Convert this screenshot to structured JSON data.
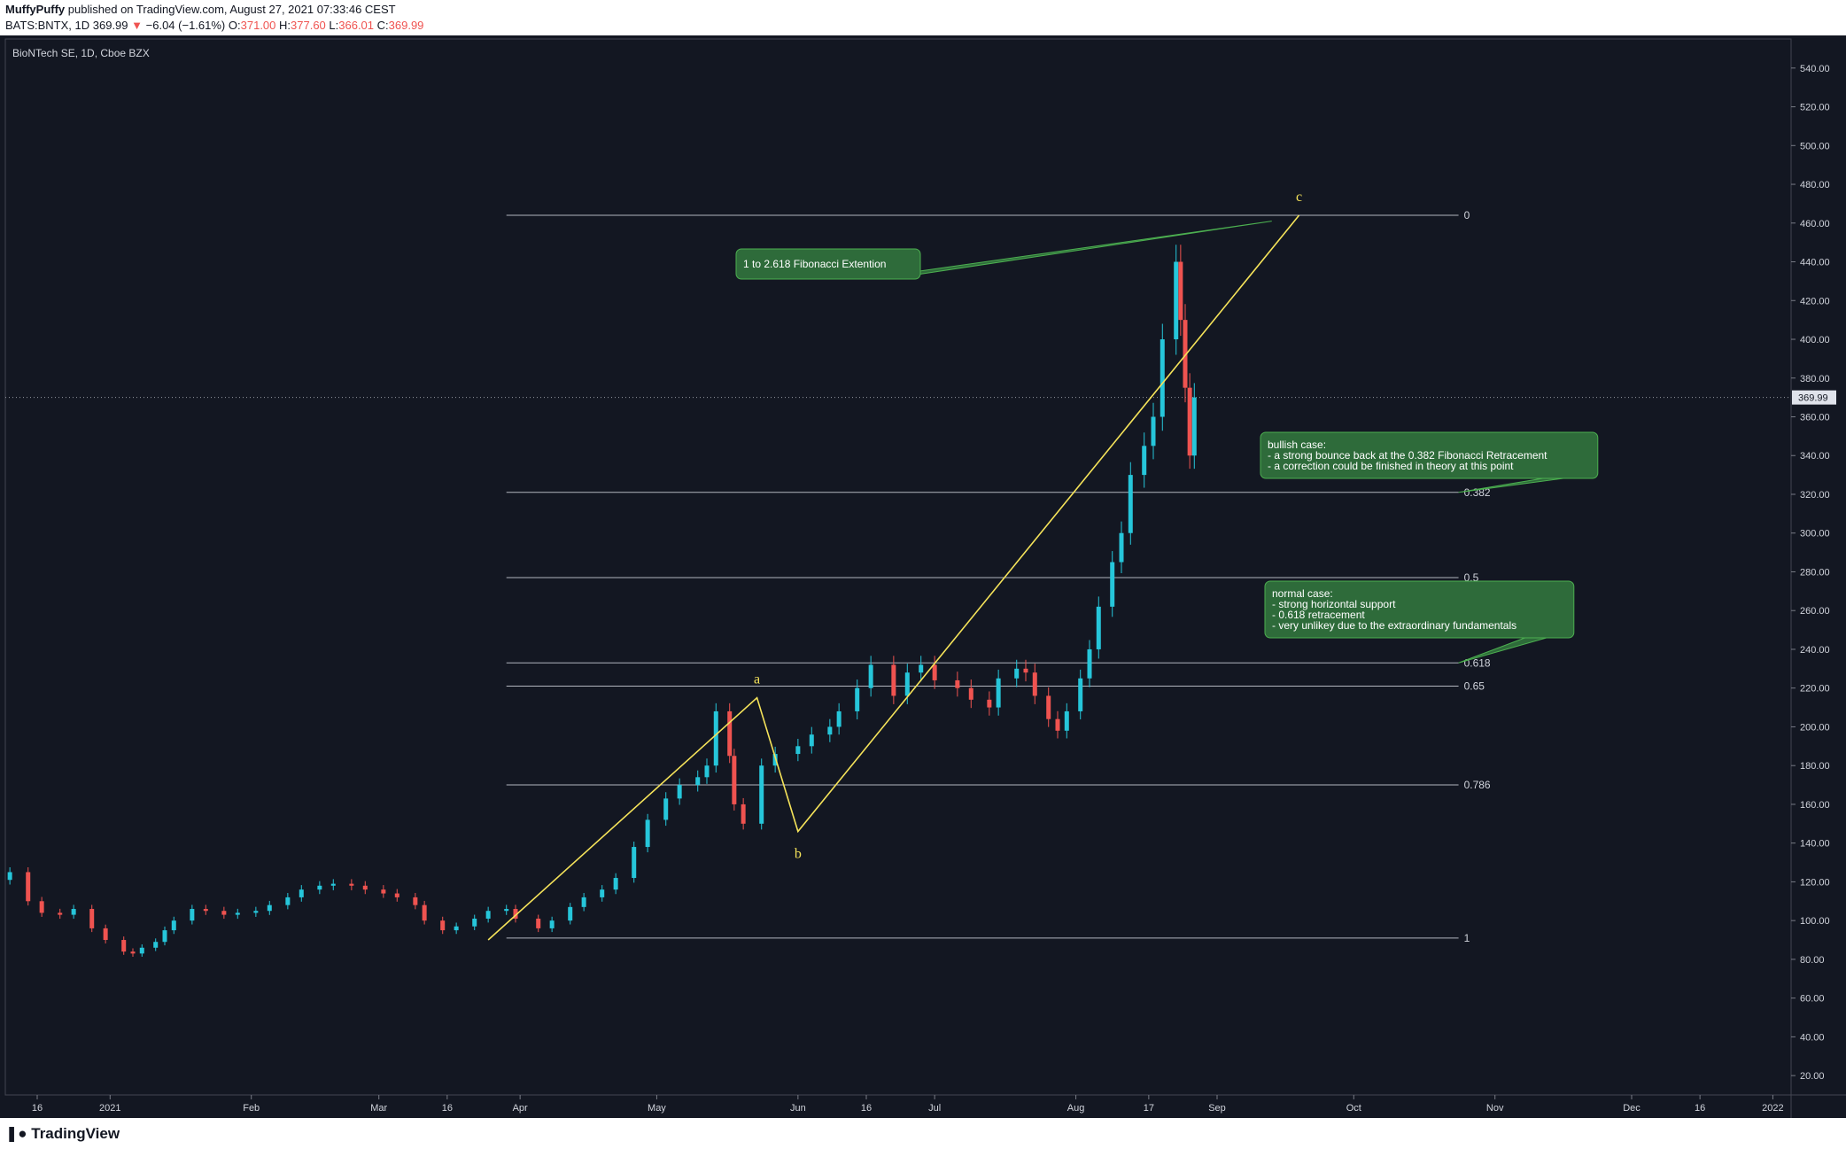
{
  "header": {
    "author": "MuffyPuffy",
    "published": "published on TradingView.com, August 27, 2021 07:33:46 CEST",
    "symbol": "BATS:BNTX, 1D",
    "last": "369.99",
    "change_arrow": "▼",
    "change": "−6.04 (−1.61%)",
    "o_label": "O:",
    "o_value": "371.00",
    "h_label": "H:",
    "h_value": "377.60",
    "l_label": "L:",
    "l_value": "366.01",
    "c_label": "C:",
    "c_value": "369.99"
  },
  "footer": {
    "logo_text": "TradingView",
    "logo_icon": "tradingview-logo-icon"
  },
  "colors": {
    "up": "#26c6da",
    "down": "#ef5350",
    "background": "#131722",
    "wave": "#f5e35a",
    "callout": "#2e6b3a",
    "callout_border": "#4caf50"
  },
  "chart_data": {
    "type": "candlestick",
    "title": "BioNTech SE, 1D, Cboe BZX",
    "ylim": [
      10,
      555
    ],
    "xlim": [
      "2020-12-09",
      "2022-01-05"
    ],
    "y_ticks": [
      20,
      40,
      60,
      80,
      100,
      120,
      140,
      160,
      180,
      200,
      220,
      240,
      260,
      280,
      300,
      320,
      340,
      360,
      380,
      400,
      420,
      440,
      460,
      480,
      500,
      520,
      540
    ],
    "y_tick_labels": [
      "20.00",
      "40.00",
      "60.00",
      "80.00",
      "100.00",
      "120.00",
      "140.00",
      "160.00",
      "180.00",
      "200.00",
      "220.00",
      "240.00",
      "260.00",
      "280.00",
      "300.00",
      "320.00",
      "340.00",
      "360.00",
      "380.00",
      "400.00",
      "420.00",
      "440.00",
      "460.00",
      "480.00",
      "500.00",
      "520.00",
      "540.00"
    ],
    "x_ticks": [
      {
        "label": "16",
        "date": "2020-12-16"
      },
      {
        "label": "2021",
        "date": "2021-01-01"
      },
      {
        "label": "Feb",
        "date": "2021-02-01"
      },
      {
        "label": "Mar",
        "date": "2021-03-01"
      },
      {
        "label": "16",
        "date": "2021-03-16"
      },
      {
        "label": "Apr",
        "date": "2021-04-01"
      },
      {
        "label": "May",
        "date": "2021-05-01"
      },
      {
        "label": "Jun",
        "date": "2021-06-01"
      },
      {
        "label": "16",
        "date": "2021-06-16"
      },
      {
        "label": "Jul",
        "date": "2021-07-01"
      },
      {
        "label": "Aug",
        "date": "2021-08-01"
      },
      {
        "label": "17",
        "date": "2021-08-17"
      },
      {
        "label": "Sep",
        "date": "2021-09-01"
      },
      {
        "label": "Oct",
        "date": "2021-10-01"
      },
      {
        "label": "Nov",
        "date": "2021-11-01"
      },
      {
        "label": "Dec",
        "date": "2021-12-01"
      },
      {
        "label": "16",
        "date": "2021-12-16"
      },
      {
        "label": "2022",
        "date": "2022-01-01"
      }
    ],
    "last_price": 369.99,
    "last_price_label": "369.99",
    "closes": [
      {
        "date": "2020-12-10",
        "value": 125
      },
      {
        "date": "2020-12-14",
        "value": 110
      },
      {
        "date": "2020-12-17",
        "value": 104
      },
      {
        "date": "2020-12-21",
        "value": 103
      },
      {
        "date": "2020-12-24",
        "value": 106
      },
      {
        "date": "2020-12-28",
        "value": 96
      },
      {
        "date": "2020-12-31",
        "value": 90
      },
      {
        "date": "2021-01-04",
        "value": 84
      },
      {
        "date": "2021-01-06",
        "value": 83
      },
      {
        "date": "2021-01-08",
        "value": 86
      },
      {
        "date": "2021-01-11",
        "value": 89
      },
      {
        "date": "2021-01-13",
        "value": 95
      },
      {
        "date": "2021-01-15",
        "value": 100
      },
      {
        "date": "2021-01-19",
        "value": 106
      },
      {
        "date": "2021-01-22",
        "value": 105
      },
      {
        "date": "2021-01-26",
        "value": 103
      },
      {
        "date": "2021-01-29",
        "value": 104
      },
      {
        "date": "2021-02-02",
        "value": 105
      },
      {
        "date": "2021-02-05",
        "value": 108
      },
      {
        "date": "2021-02-09",
        "value": 112
      },
      {
        "date": "2021-02-12",
        "value": 116
      },
      {
        "date": "2021-02-16",
        "value": 118
      },
      {
        "date": "2021-02-19",
        "value": 119
      },
      {
        "date": "2021-02-23",
        "value": 118
      },
      {
        "date": "2021-02-26",
        "value": 116
      },
      {
        "date": "2021-03-02",
        "value": 114
      },
      {
        "date": "2021-03-05",
        "value": 112
      },
      {
        "date": "2021-03-09",
        "value": 108
      },
      {
        "date": "2021-03-11",
        "value": 100
      },
      {
        "date": "2021-03-15",
        "value": 95
      },
      {
        "date": "2021-03-18",
        "value": 97
      },
      {
        "date": "2021-03-22",
        "value": 101
      },
      {
        "date": "2021-03-25",
        "value": 105
      },
      {
        "date": "2021-03-29",
        "value": 106
      },
      {
        "date": "2021-03-31",
        "value": 101
      },
      {
        "date": "2021-04-05",
        "value": 96
      },
      {
        "date": "2021-04-08",
        "value": 100
      },
      {
        "date": "2021-04-12",
        "value": 107
      },
      {
        "date": "2021-04-15",
        "value": 112
      },
      {
        "date": "2021-04-19",
        "value": 116
      },
      {
        "date": "2021-04-22",
        "value": 122
      },
      {
        "date": "2021-04-26",
        "value": 138
      },
      {
        "date": "2021-04-29",
        "value": 152
      },
      {
        "date": "2021-05-03",
        "value": 163
      },
      {
        "date": "2021-05-06",
        "value": 170
      },
      {
        "date": "2021-05-10",
        "value": 174
      },
      {
        "date": "2021-05-12",
        "value": 180
      },
      {
        "date": "2021-05-14",
        "value": 208
      },
      {
        "date": "2021-05-17",
        "value": 185
      },
      {
        "date": "2021-05-18",
        "value": 160
      },
      {
        "date": "2021-05-20",
        "value": 150
      },
      {
        "date": "2021-05-24",
        "value": 180
      },
      {
        "date": "2021-05-27",
        "value": 186
      },
      {
        "date": "2021-06-01",
        "value": 190
      },
      {
        "date": "2021-06-04",
        "value": 196
      },
      {
        "date": "2021-06-08",
        "value": 200
      },
      {
        "date": "2021-06-10",
        "value": 208
      },
      {
        "date": "2021-06-14",
        "value": 220
      },
      {
        "date": "2021-06-17",
        "value": 232
      },
      {
        "date": "2021-06-22",
        "value": 216
      },
      {
        "date": "2021-06-25",
        "value": 228
      },
      {
        "date": "2021-06-28",
        "value": 232
      },
      {
        "date": "2021-07-01",
        "value": 224
      },
      {
        "date": "2021-07-06",
        "value": 220
      },
      {
        "date": "2021-07-09",
        "value": 214
      },
      {
        "date": "2021-07-13",
        "value": 210
      },
      {
        "date": "2021-07-15",
        "value": 225
      },
      {
        "date": "2021-07-19",
        "value": 230
      },
      {
        "date": "2021-07-21",
        "value": 228
      },
      {
        "date": "2021-07-23",
        "value": 216
      },
      {
        "date": "2021-07-26",
        "value": 204
      },
      {
        "date": "2021-07-28",
        "value": 198
      },
      {
        "date": "2021-07-30",
        "value": 208
      },
      {
        "date": "2021-08-02",
        "value": 225
      },
      {
        "date": "2021-08-04",
        "value": 240
      },
      {
        "date": "2021-08-06",
        "value": 262
      },
      {
        "date": "2021-08-09",
        "value": 285
      },
      {
        "date": "2021-08-11",
        "value": 300
      },
      {
        "date": "2021-08-13",
        "value": 330
      },
      {
        "date": "2021-08-16",
        "value": 345
      },
      {
        "date": "2021-08-18",
        "value": 360
      },
      {
        "date": "2021-08-20",
        "value": 400
      },
      {
        "date": "2021-08-23",
        "value": 440
      },
      {
        "date": "2021-08-24",
        "value": 410
      },
      {
        "date": "2021-08-25",
        "value": 375
      },
      {
        "date": "2021-08-26",
        "value": 340
      },
      {
        "date": "2021-08-27",
        "value": 370
      }
    ],
    "fibonacci": [
      {
        "level": "0",
        "price": 464,
        "date_start": "2021-03-29",
        "date_end": "2021-10-24"
      },
      {
        "level": "0.382",
        "price": 321,
        "date_start": "2021-03-29",
        "date_end": "2021-10-24"
      },
      {
        "level": "0.5",
        "price": 277,
        "date_start": "2021-03-29",
        "date_end": "2021-10-24"
      },
      {
        "level": "0.618",
        "price": 233,
        "date_start": "2021-03-29",
        "date_end": "2021-10-24"
      },
      {
        "level": "0.65",
        "price": 221,
        "date_start": "2021-03-29",
        "date_end": "2021-10-24"
      },
      {
        "level": "0.786",
        "price": 170,
        "date_start": "2021-03-29",
        "date_end": "2021-10-24"
      },
      {
        "level": "1",
        "price": 91,
        "date_start": "2021-03-29",
        "date_end": "2021-10-24"
      }
    ],
    "waves": [
      {
        "date": "2021-03-25",
        "value": 90,
        "label": ""
      },
      {
        "date": "2021-05-23",
        "value": 215,
        "label": "a"
      },
      {
        "date": "2021-06-01",
        "value": 146,
        "label": "b"
      },
      {
        "date": "2021-09-19",
        "value": 464,
        "label": "c"
      }
    ],
    "annotations": [
      {
        "id": "extension",
        "text": [
          "1 to 2.618 Fibonacci Extention"
        ],
        "anchor_date": "2021-09-13",
        "anchor_price": 461
      },
      {
        "id": "bullish",
        "text": [
          "bullish case:",
          "- a strong bounce back at the 0.382 Fibonacci Retracement",
          "- a correction could be finished in theory at this point"
        ],
        "anchor_date": "2021-10-24",
        "anchor_price": 321
      },
      {
        "id": "normal",
        "text": [
          "normal case:",
          "- strong horizontal support",
          "- 0.618 retracement",
          "- very unlikey due to the extraordinary fundamentals"
        ],
        "anchor_date": "2021-10-24",
        "anchor_price": 233
      }
    ]
  }
}
